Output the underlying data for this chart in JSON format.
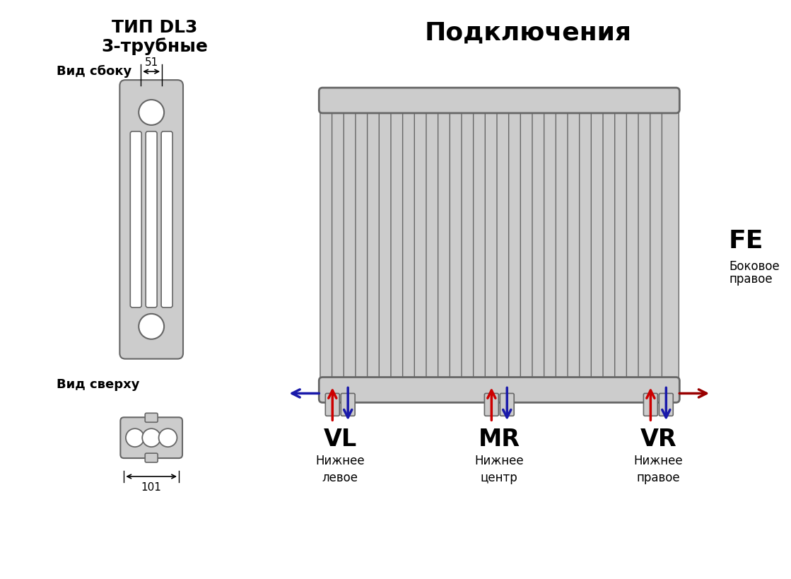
{
  "bg_color": "#ffffff",
  "radiator_color": "#cccccc",
  "radiator_edge": "#666666",
  "title_left": "ТИП DL3",
  "subtitle_left": "3-трубные",
  "title_right": "Подключения",
  "label_side": "Вид сбоку",
  "label_top": "Вид сверху",
  "dim_51": "51",
  "dim_101": "101",
  "fe_label": "FE",
  "fe_sub1": "Боковое",
  "fe_sub2": "правое",
  "vl_label": "VL",
  "vl_sub": "Нижнее\nлевое",
  "mr_label": "MR",
  "mr_sub": "Нижнее\nцентр",
  "vr_label": "VR",
  "vr_sub": "Нижнее\nправое",
  "red_color": "#cc0000",
  "blue_color": "#1a1aaa"
}
